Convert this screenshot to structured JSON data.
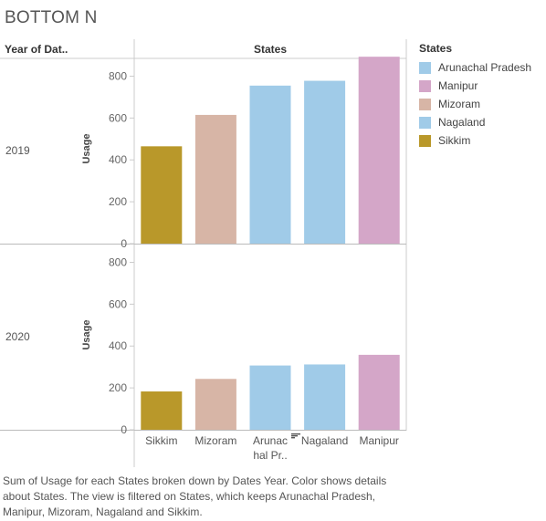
{
  "title": "BOTTOM N",
  "header": {
    "row_field": "Year of Dat..",
    "column_field": "States"
  },
  "caption": "Sum of Usage for each States broken down by Dates Year.  Color shows details about States. The view is filtered on States, which keeps Arunachal Pradesh, Manipur, Mizoram, Nagaland and Sikkim.",
  "legend": {
    "title": "States",
    "items": [
      {
        "label": "Arunachal Pradesh",
        "color": "#A0CBE8"
      },
      {
        "label": "Manipur",
        "color": "#D4A6C8"
      },
      {
        "label": "Mizoram",
        "color": "#D7B5A6"
      },
      {
        "label": "Nagaland",
        "color": "#A0CBE8"
      },
      {
        "label": "Sikkim",
        "color": "#B9982A"
      }
    ]
  },
  "chart_data": {
    "type": "bar",
    "categories": [
      "Sikkim",
      "Mizoram",
      "Arunachal Pradesh",
      "Nagaland",
      "Manipur"
    ],
    "category_tick_labels": [
      [
        "Sikkim"
      ],
      [
        "Mizoram"
      ],
      [
        "Arunac",
        "hal Pr.."
      ],
      [
        "Nagaland"
      ],
      [
        "Manipur"
      ]
    ],
    "colors": [
      "#B9982A",
      "#D7B5A6",
      "#A0CBE8",
      "#A0CBE8",
      "#D4A6C8"
    ],
    "ylabel": "Usage",
    "ylim": [
      0,
      900
    ],
    "yticks": [
      0,
      200,
      400,
      600,
      800
    ],
    "grid": false,
    "legend_position": "right",
    "panels": [
      {
        "row": "2019",
        "values": [
          465,
          615,
          755,
          778,
          893
        ]
      },
      {
        "row": "2020",
        "values": [
          183,
          243,
          307,
          312,
          358
        ]
      }
    ]
  }
}
